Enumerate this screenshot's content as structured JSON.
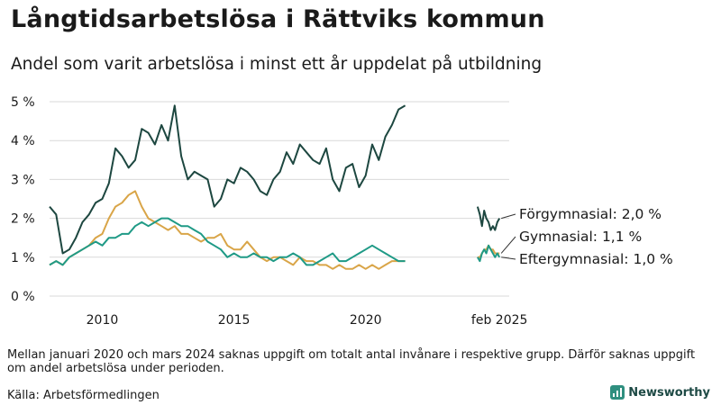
{
  "title": "Långtidsarbetslösa i Rättviks kommun",
  "subtitle": "Andel som varit arbetslösa i minst ett år uppdelat på utbildning",
  "note": "Mellan januari 2020 och mars 2024 saknas uppgift om totalt antal invånare i respektive grupp. Därför saknas uppgift om andel arbetslösa under perioden.",
  "source": "Källa: Arbetsförmedlingen",
  "brand": "Newsworthy",
  "colors": {
    "forgymnasial": "#1d4740",
    "gymnasial": "#d9a548",
    "eftergymnasial": "#1f9a86",
    "grid": "#d9d9d9",
    "axis_text": "#1a1a1a"
  },
  "chart_data": {
    "type": "line",
    "title": "Långtidsarbetslösa i Rättviks kommun",
    "subtitle": "Andel som varit arbetslösa i minst ett år uppdelat på utbildning",
    "y_unit": "%",
    "ylim": [
      0,
      5
    ],
    "yticks": [
      {
        "value": 0,
        "label": "0 %"
      },
      {
        "value": 1,
        "label": "1 %"
      },
      {
        "value": 2,
        "label": "2 %"
      },
      {
        "value": 3,
        "label": "3 %"
      },
      {
        "value": 4,
        "label": "4 %"
      },
      {
        "value": 5,
        "label": "5 %"
      }
    ],
    "xlim": [
      2008.0,
      2025.45
    ],
    "xticks": [
      {
        "value": 2010,
        "label": "2010"
      },
      {
        "value": 2015,
        "label": "2015"
      },
      {
        "value": 2020,
        "label": "2020"
      },
      {
        "value": 2025.08,
        "label": "feb 2025"
      }
    ],
    "grid": "horizontal",
    "legend": "end-labels-right",
    "segments": [
      {
        "start": 2008.0,
        "end": 2021.0,
        "step": 0.25
      },
      {
        "start": 2024.25,
        "end": 2025.08,
        "step": 0.0833
      }
    ],
    "series": [
      {
        "name": "Förgymnasial",
        "end_label": "Förgymnasial: 2,0 %",
        "color_key": "forgymnasial",
        "values": [
          [
            2.3,
            2.1,
            1.1,
            1.2,
            1.5,
            1.9,
            2.1,
            2.4,
            2.5,
            2.9,
            3.8,
            3.6,
            3.3,
            3.5,
            4.3,
            4.2,
            3.9,
            4.4,
            4.0,
            4.9,
            3.6,
            3.0,
            3.2,
            3.1,
            3.0,
            2.3,
            2.5,
            3.0,
            2.9,
            3.3,
            3.2,
            3.0,
            2.7,
            2.6,
            3.0,
            3.2,
            3.7,
            3.4,
            3.9,
            3.7,
            3.5,
            3.4,
            3.8,
            3.0,
            2.7,
            3.3,
            3.4,
            2.8,
            3.1,
            3.9,
            3.5,
            4.1,
            4.4,
            4.8,
            4.9
          ],
          [
            2.3,
            2.1,
            1.8,
            2.2,
            2.0,
            1.9,
            1.7,
            1.8,
            1.7,
            1.9,
            2.0
          ]
        ]
      },
      {
        "name": "Gymnasial",
        "end_label": "Gymnasial: 1,1 %",
        "color_key": "gymnasial",
        "values": [
          [
            0.8,
            0.9,
            0.8,
            1.0,
            1.1,
            1.2,
            1.3,
            1.5,
            1.6,
            2.0,
            2.3,
            2.4,
            2.6,
            2.7,
            2.3,
            2.0,
            1.9,
            1.8,
            1.7,
            1.8,
            1.6,
            1.6,
            1.5,
            1.4,
            1.5,
            1.5,
            1.6,
            1.3,
            1.2,
            1.2,
            1.4,
            1.2,
            1.0,
            0.9,
            1.0,
            1.0,
            0.9,
            0.8,
            1.0,
            0.9,
            0.9,
            0.8,
            0.8,
            0.7,
            0.8,
            0.7,
            0.7,
            0.8,
            0.7,
            0.8,
            0.7,
            0.8,
            0.9,
            0.9,
            0.9
          ],
          [
            1.0,
            1.0,
            1.1,
            1.2,
            1.2,
            1.3,
            1.2,
            1.2,
            1.1,
            1.1,
            1.1
          ]
        ]
      },
      {
        "name": "Eftergymnasial",
        "end_label": "Eftergymnasial: 1,0 %",
        "color_key": "eftergymnasial",
        "values": [
          [
            0.8,
            0.9,
            0.8,
            1.0,
            1.1,
            1.2,
            1.3,
            1.4,
            1.3,
            1.5,
            1.5,
            1.6,
            1.6,
            1.8,
            1.9,
            1.8,
            1.9,
            2.0,
            2.0,
            1.9,
            1.8,
            1.8,
            1.7,
            1.6,
            1.4,
            1.3,
            1.2,
            1.0,
            1.1,
            1.0,
            1.0,
            1.1,
            1.0,
            1.0,
            0.9,
            1.0,
            1.0,
            1.1,
            1.0,
            0.8,
            0.8,
            0.9,
            1.0,
            1.1,
            0.9,
            0.9,
            1.0,
            1.1,
            1.2,
            1.3,
            1.2,
            1.1,
            1.0,
            0.9,
            0.9
          ],
          [
            1.0,
            0.9,
            1.1,
            1.2,
            1.1,
            1.3,
            1.2,
            1.1,
            1.0,
            1.1,
            1.0
          ]
        ]
      }
    ]
  }
}
